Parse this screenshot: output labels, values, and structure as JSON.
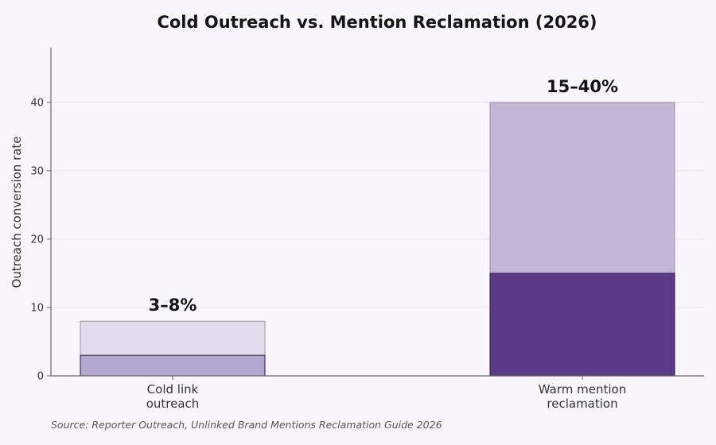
{
  "chart_data": {
    "type": "bar",
    "title": "Cold Outreach vs. Mention Reclamation (2026)",
    "xlabel": "",
    "ylabel": "Outreach conversion rate",
    "ylim": [
      0,
      48
    ],
    "yticks": [
      0,
      10,
      20,
      30,
      40
    ],
    "grid": true,
    "categories": [
      [
        "Cold link",
        "outreach"
      ],
      [
        "Warm mention",
        "reclamation"
      ]
    ],
    "bars": [
      {
        "low": 3,
        "high": 8,
        "label": "3–8%",
        "low_color": "#b3a7d1",
        "high_color": "#e0dbeb"
      },
      {
        "low": 15,
        "high": 40,
        "label": "15–40%",
        "low_color": "#5b3a8a",
        "high_color": "#c4b4d8"
      }
    ],
    "source": "Source: Reporter Outreach, Unlinked Brand Mentions Reclamation Guide 2026"
  }
}
